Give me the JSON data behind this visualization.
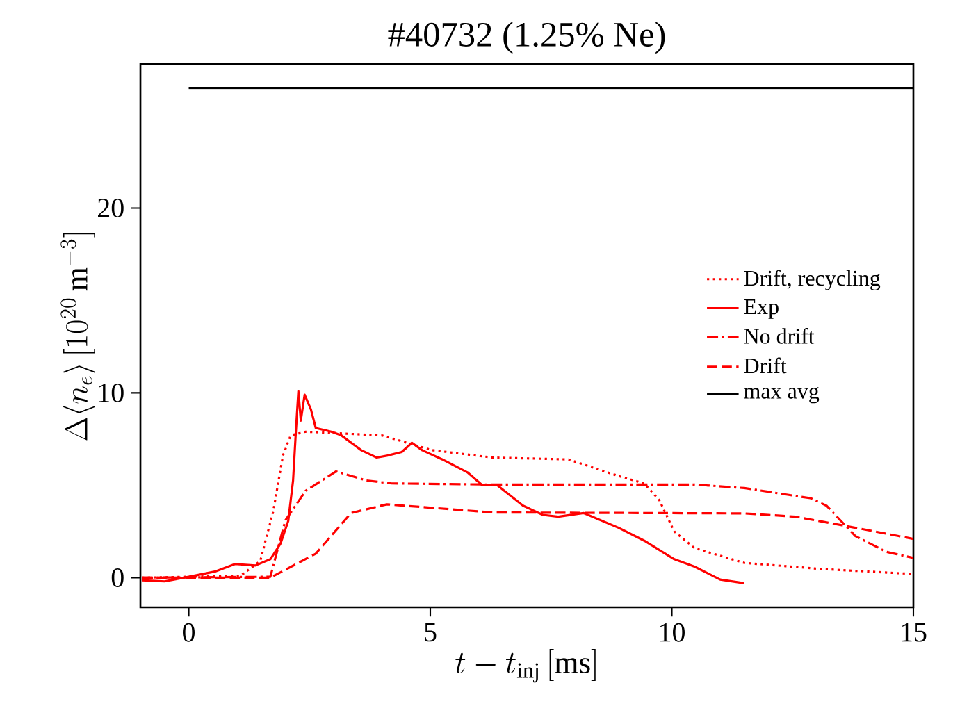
{
  "chart_data": {
    "type": "line",
    "title": "#40732 (1.25% Ne)",
    "xlabel": "t - t_{\\mathrm{inj}}\\,[\\mathrm{ms}]",
    "ylabel": "\\Delta\\langle n_e\\rangle\\,[10^{20}\\,\\mathrm{m}^{-3}]",
    "xlim": [
      -1,
      15
    ],
    "ylim": [
      -1.6,
      27.8
    ],
    "xticks": [
      0,
      5,
      10,
      15
    ],
    "yticks": [
      0,
      10,
      20
    ],
    "legend": "right",
    "grid": false,
    "marker": "none",
    "series": [
      {
        "name": "Drift, recycling",
        "color": "#ff0000",
        "line_style": "dotted",
        "x": [
          -0.97,
          0,
          1.07,
          1.48,
          1.75,
          1.95,
          2.11,
          2.42,
          4.0,
          5.04,
          6.29,
          7.86,
          8.9,
          9.43,
          9.74,
          10.05,
          10.47,
          11.5,
          13.1,
          15
        ],
        "values": [
          0,
          0.05,
          0.1,
          0.9,
          3.6,
          6.6,
          7.7,
          7.9,
          7.7,
          6.9,
          6.5,
          6.4,
          5.5,
          5.1,
          4.2,
          2.5,
          1.6,
          0.8,
          0.47,
          0.2
        ]
      },
      {
        "name": "Exp",
        "color": "#ff0000",
        "line_style": "solid",
        "x": [
          -0.97,
          -0.5,
          0,
          0.54,
          0.96,
          1.38,
          1.69,
          1.9,
          2.06,
          2.16,
          2.22,
          2.27,
          2.32,
          2.4,
          2.53,
          2.63,
          2.95,
          3.16,
          3.57,
          3.89,
          4.1,
          4.41,
          4.62,
          4.83,
          5.25,
          5.77,
          6.08,
          6.39,
          6.92,
          7.33,
          7.65,
          8.17,
          8.9,
          9.43,
          10.05,
          10.47,
          11.0,
          11.5
        ],
        "values": [
          -0.14,
          -0.2,
          0.05,
          0.33,
          0.74,
          0.66,
          1.0,
          1.84,
          3.07,
          5.26,
          8.0,
          10.1,
          8.5,
          9.9,
          9.1,
          8.1,
          7.9,
          7.7,
          6.9,
          6.5,
          6.6,
          6.8,
          7.3,
          6.9,
          6.4,
          5.7,
          5.0,
          5.0,
          3.9,
          3.4,
          3.3,
          3.5,
          2.7,
          2.0,
          1.0,
          0.6,
          -0.1,
          -0.3
        ]
      },
      {
        "name": "No drift",
        "color": "#ff0000",
        "line_style": "dashdot",
        "x": [
          -0.97,
          1.69,
          2.0,
          2.42,
          3.05,
          3.68,
          4.2,
          6.29,
          10.47,
          11.5,
          12.87,
          13.2,
          13.8,
          14.44,
          15
        ],
        "values": [
          0,
          0.05,
          3.1,
          4.7,
          5.75,
          5.26,
          5.1,
          5.04,
          5.04,
          4.85,
          4.3,
          3.9,
          2.25,
          1.4,
          1.07
        ]
      },
      {
        "name": "Drift",
        "color": "#ff0000",
        "line_style": "dashed",
        "x": [
          -0.97,
          1.69,
          2.63,
          3.36,
          4.1,
          6.29,
          11.5,
          12.56,
          13.6,
          15
        ],
        "values": [
          0,
          0,
          1.3,
          3.5,
          3.97,
          3.53,
          3.48,
          3.3,
          2.8,
          2.1
        ]
      },
      {
        "name": "max avg",
        "color": "#000000",
        "line_style": "solid",
        "x": [
          0,
          15
        ],
        "values": [
          26.5,
          26.5
        ]
      }
    ]
  }
}
